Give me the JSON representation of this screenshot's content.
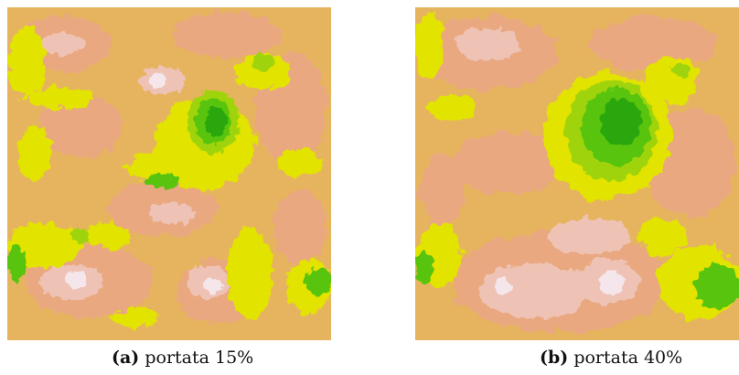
{
  "figure": {
    "panels": [
      {
        "label": "(a)",
        "caption": "portata 15%"
      },
      {
        "label": "(b)",
        "caption": "portata 40%"
      }
    ]
  },
  "colors": {
    "background_tan": "#e6b45f",
    "salmon": "#e9a87f",
    "pale_pink": "#eec3b5",
    "white_pink": "#f4e6ea",
    "yellow": "#e3e305",
    "yellow_green": "#9fd40a",
    "green": "#58c40c",
    "dark_green": "#2aa70c"
  }
}
